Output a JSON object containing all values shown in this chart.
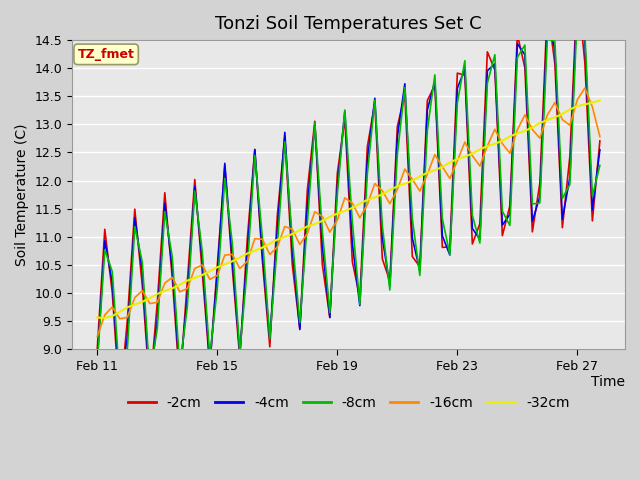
{
  "title": "Tonzi Soil Temperatures Set C",
  "xlabel": "Time",
  "ylabel": "Soil Temperature (C)",
  "ylim": [
    9.0,
    14.5
  ],
  "legend_label": "TZ_fmet",
  "series_labels": [
    "-2cm",
    "-4cm",
    "-8cm",
    "-16cm",
    "-32cm"
  ],
  "series_colors": [
    "#dd0000",
    "#0000ee",
    "#00bb00",
    "#ff8800",
    "#eeee00"
  ],
  "x_tick_labels": [
    "Feb 11",
    "Feb 15",
    "Feb 19",
    "Feb 23",
    "Feb 27"
  ],
  "title_fontsize": 13,
  "axis_label_fontsize": 10,
  "legend_fontsize": 10,
  "fig_width": 6.4,
  "fig_height": 4.8,
  "fig_dpi": 100
}
